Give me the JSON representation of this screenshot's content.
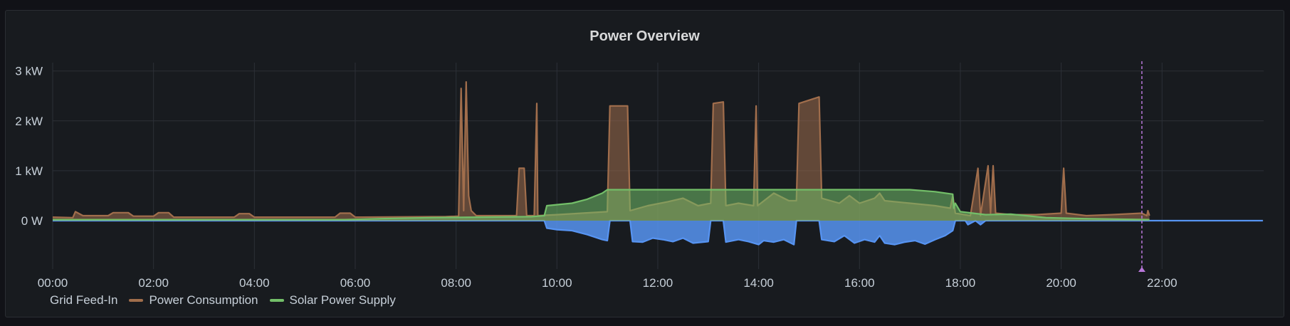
{
  "panel": {
    "title": "Power Overview"
  },
  "chart_data": {
    "type": "area",
    "title": "Power Overview",
    "xlabel": "",
    "ylabel": "",
    "x_ticks": [
      "00:00",
      "02:00",
      "04:00",
      "06:00",
      "08:00",
      "10:00",
      "12:00",
      "14:00",
      "16:00",
      "18:00",
      "20:00",
      "22:00"
    ],
    "y_ticks": [
      "0 W",
      "1 kW",
      "2 kW",
      "3 kW"
    ],
    "y_unit": "W",
    "xlim_hours": [
      0,
      24
    ],
    "ylim": [
      -1000,
      3000
    ],
    "grid": true,
    "legend_position": "bottom-left",
    "current_time_marker_hour": 21.6,
    "series": [
      {
        "name": "Grid Feed-In",
        "color": "#5794f2",
        "points": [
          [
            0,
            0
          ],
          [
            9.75,
            0
          ],
          [
            9.8,
            -150
          ],
          [
            10.0,
            -180
          ],
          [
            10.3,
            -200
          ],
          [
            10.6,
            -280
          ],
          [
            10.9,
            -380
          ],
          [
            11.0,
            -400
          ],
          [
            11.05,
            0
          ],
          [
            11.45,
            0
          ],
          [
            11.5,
            -420
          ],
          [
            11.7,
            -430
          ],
          [
            11.9,
            -350
          ],
          [
            12.1,
            -380
          ],
          [
            12.3,
            -420
          ],
          [
            12.5,
            -350
          ],
          [
            12.7,
            -450
          ],
          [
            12.9,
            -430
          ],
          [
            13.0,
            -420
          ],
          [
            13.05,
            0
          ],
          [
            13.3,
            0
          ],
          [
            13.35,
            -430
          ],
          [
            13.6,
            -380
          ],
          [
            13.8,
            -420
          ],
          [
            14.0,
            -480
          ],
          [
            14.1,
            -400
          ],
          [
            14.3,
            -430
          ],
          [
            14.5,
            -380
          ],
          [
            14.7,
            -480
          ],
          [
            14.75,
            0
          ],
          [
            15.2,
            0
          ],
          [
            15.25,
            -380
          ],
          [
            15.5,
            -420
          ],
          [
            15.7,
            -300
          ],
          [
            15.9,
            -450
          ],
          [
            16.1,
            -380
          ],
          [
            16.3,
            -430
          ],
          [
            16.4,
            -300
          ],
          [
            16.5,
            -450
          ],
          [
            16.7,
            -480
          ],
          [
            16.9,
            -430
          ],
          [
            17.1,
            -400
          ],
          [
            17.3,
            -470
          ],
          [
            17.5,
            -380
          ],
          [
            17.7,
            -300
          ],
          [
            17.85,
            -200
          ],
          [
            17.9,
            0
          ],
          [
            18.1,
            0
          ],
          [
            18.15,
            -80
          ],
          [
            18.3,
            0
          ],
          [
            18.4,
            -80
          ],
          [
            18.5,
            0
          ],
          [
            24,
            0
          ]
        ]
      },
      {
        "name": "Power Consumption",
        "color": "#a16e4c",
        "points": [
          [
            0,
            70
          ],
          [
            0.4,
            60
          ],
          [
            0.45,
            180
          ],
          [
            0.6,
            100
          ],
          [
            1.1,
            100
          ],
          [
            1.2,
            160
          ],
          [
            1.5,
            160
          ],
          [
            1.6,
            90
          ],
          [
            2.0,
            90
          ],
          [
            2.1,
            160
          ],
          [
            2.3,
            160
          ],
          [
            2.4,
            70
          ],
          [
            3.6,
            70
          ],
          [
            3.7,
            140
          ],
          [
            3.9,
            140
          ],
          [
            4.0,
            70
          ],
          [
            5.6,
            70
          ],
          [
            5.7,
            150
          ],
          [
            5.9,
            150
          ],
          [
            6.0,
            70
          ],
          [
            7.8,
            80
          ],
          [
            8.05,
            90
          ],
          [
            8.1,
            2650
          ],
          [
            8.15,
            200
          ],
          [
            8.2,
            2780
          ],
          [
            8.25,
            500
          ],
          [
            8.3,
            200
          ],
          [
            8.4,
            100
          ],
          [
            9.2,
            100
          ],
          [
            9.25,
            1050
          ],
          [
            9.35,
            1050
          ],
          [
            9.4,
            100
          ],
          [
            9.55,
            100
          ],
          [
            9.6,
            2350
          ],
          [
            9.62,
            100
          ],
          [
            10.0,
            120
          ],
          [
            10.5,
            150
          ],
          [
            11.0,
            180
          ],
          [
            11.05,
            2300
          ],
          [
            11.4,
            2300
          ],
          [
            11.45,
            200
          ],
          [
            11.8,
            300
          ],
          [
            12.2,
            380
          ],
          [
            12.5,
            450
          ],
          [
            12.8,
            300
          ],
          [
            13.05,
            350
          ],
          [
            13.1,
            2350
          ],
          [
            13.3,
            2380
          ],
          [
            13.35,
            300
          ],
          [
            13.6,
            350
          ],
          [
            13.9,
            300
          ],
          [
            13.95,
            2300
          ],
          [
            13.98,
            300
          ],
          [
            14.3,
            550
          ],
          [
            14.6,
            400
          ],
          [
            14.75,
            400
          ],
          [
            14.8,
            2350
          ],
          [
            15.2,
            2480
          ],
          [
            15.25,
            450
          ],
          [
            15.6,
            350
          ],
          [
            15.8,
            500
          ],
          [
            16.0,
            350
          ],
          [
            16.3,
            450
          ],
          [
            16.4,
            550
          ],
          [
            16.5,
            400
          ],
          [
            17.0,
            350
          ],
          [
            17.5,
            300
          ],
          [
            17.8,
            250
          ],
          [
            17.85,
            500
          ],
          [
            17.9,
            150
          ],
          [
            18.2,
            100
          ],
          [
            18.35,
            1050
          ],
          [
            18.4,
            100
          ],
          [
            18.55,
            1100
          ],
          [
            18.6,
            150
          ],
          [
            18.65,
            1100
          ],
          [
            18.7,
            150
          ],
          [
            19.0,
            120
          ],
          [
            19.5,
            120
          ],
          [
            20.0,
            150
          ],
          [
            20.05,
            1050
          ],
          [
            20.1,
            150
          ],
          [
            20.5,
            100
          ],
          [
            21.0,
            120
          ],
          [
            21.6,
            150
          ],
          [
            21.7,
            100
          ],
          [
            21.72,
            200
          ],
          [
            21.75,
            100
          ]
        ]
      },
      {
        "name": "Solar Power Supply",
        "color": "#73bf69",
        "points": [
          [
            0,
            20
          ],
          [
            5.8,
            20
          ],
          [
            6.5,
            40
          ],
          [
            7.5,
            60
          ],
          [
            8.5,
            70
          ],
          [
            9.5,
            80
          ],
          [
            9.75,
            100
          ],
          [
            9.8,
            300
          ],
          [
            10.3,
            350
          ],
          [
            10.6,
            430
          ],
          [
            10.9,
            550
          ],
          [
            11.0,
            620
          ],
          [
            17.0,
            620
          ],
          [
            17.5,
            580
          ],
          [
            17.85,
            530
          ],
          [
            17.87,
            250
          ],
          [
            17.9,
            350
          ],
          [
            18.0,
            180
          ],
          [
            18.5,
            120
          ],
          [
            19.0,
            130
          ],
          [
            19.3,
            100
          ],
          [
            19.7,
            60
          ],
          [
            20.5,
            40
          ],
          [
            21.75,
            20
          ]
        ]
      }
    ]
  },
  "legend": {
    "items": [
      {
        "label": "Grid Feed-In",
        "color": ""
      },
      {
        "label": "Power Consumption",
        "color": "#a16e4c"
      },
      {
        "label": "Solar Power Supply",
        "color": "#73bf69"
      }
    ]
  }
}
